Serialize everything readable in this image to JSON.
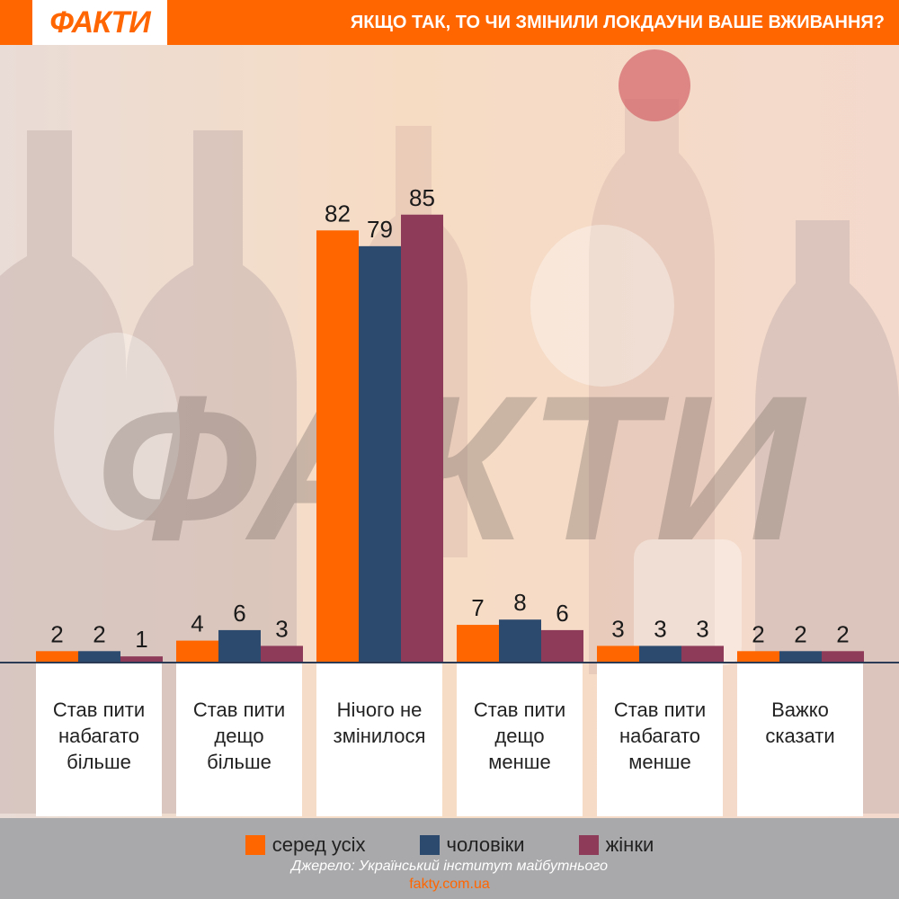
{
  "header": {
    "logo": "ФАКТИ",
    "title": "ЯКЩО ТАК, ТО ЧИ ЗМІНИЛИ ЛОКДАУНИ ВАШЕ ВЖИВАННЯ?"
  },
  "watermark": "ФАКТИ",
  "colors": {
    "brand": "#ff6600",
    "all": "#ff6600",
    "men": "#2b4a6e",
    "women": "#8e3a59"
  },
  "chart_data": {
    "type": "bar",
    "title": "ЯКЩО ТАК, ТО ЧИ ЗМІНИЛИ ЛОКДАУНИ ВАШЕ ВЖИВАННЯ?",
    "categories": [
      "Став пити набагато більше",
      "Став пити дещо більше",
      "Нічого не змінилося",
      "Став пити дещо менше",
      "Став пити набагато менше",
      "Важко сказати"
    ],
    "category_lines": [
      [
        "Став пити",
        "набагато",
        "більше"
      ],
      [
        "Став пити",
        "дещо",
        "більше"
      ],
      [
        "Нічого не",
        "змінилося"
      ],
      [
        "Став пити",
        "дещо",
        "менше"
      ],
      [
        "Став пити",
        "набагато",
        "менше"
      ],
      [
        "Важко",
        "сказати"
      ]
    ],
    "series": [
      {
        "name": "серед усіх",
        "values": [
          2,
          4,
          82,
          7,
          3,
          2
        ]
      },
      {
        "name": "чоловіки",
        "values": [
          2,
          6,
          79,
          8,
          3,
          2
        ]
      },
      {
        "name": "жінки",
        "values": [
          1,
          3,
          85,
          6,
          3,
          2
        ]
      }
    ],
    "ylim": [
      0,
      100
    ],
    "grid": false,
    "legend_position": "bottom"
  },
  "footer": {
    "source": "Джерело: Український інститут майбутнього",
    "site": "fakty.com.ua"
  }
}
